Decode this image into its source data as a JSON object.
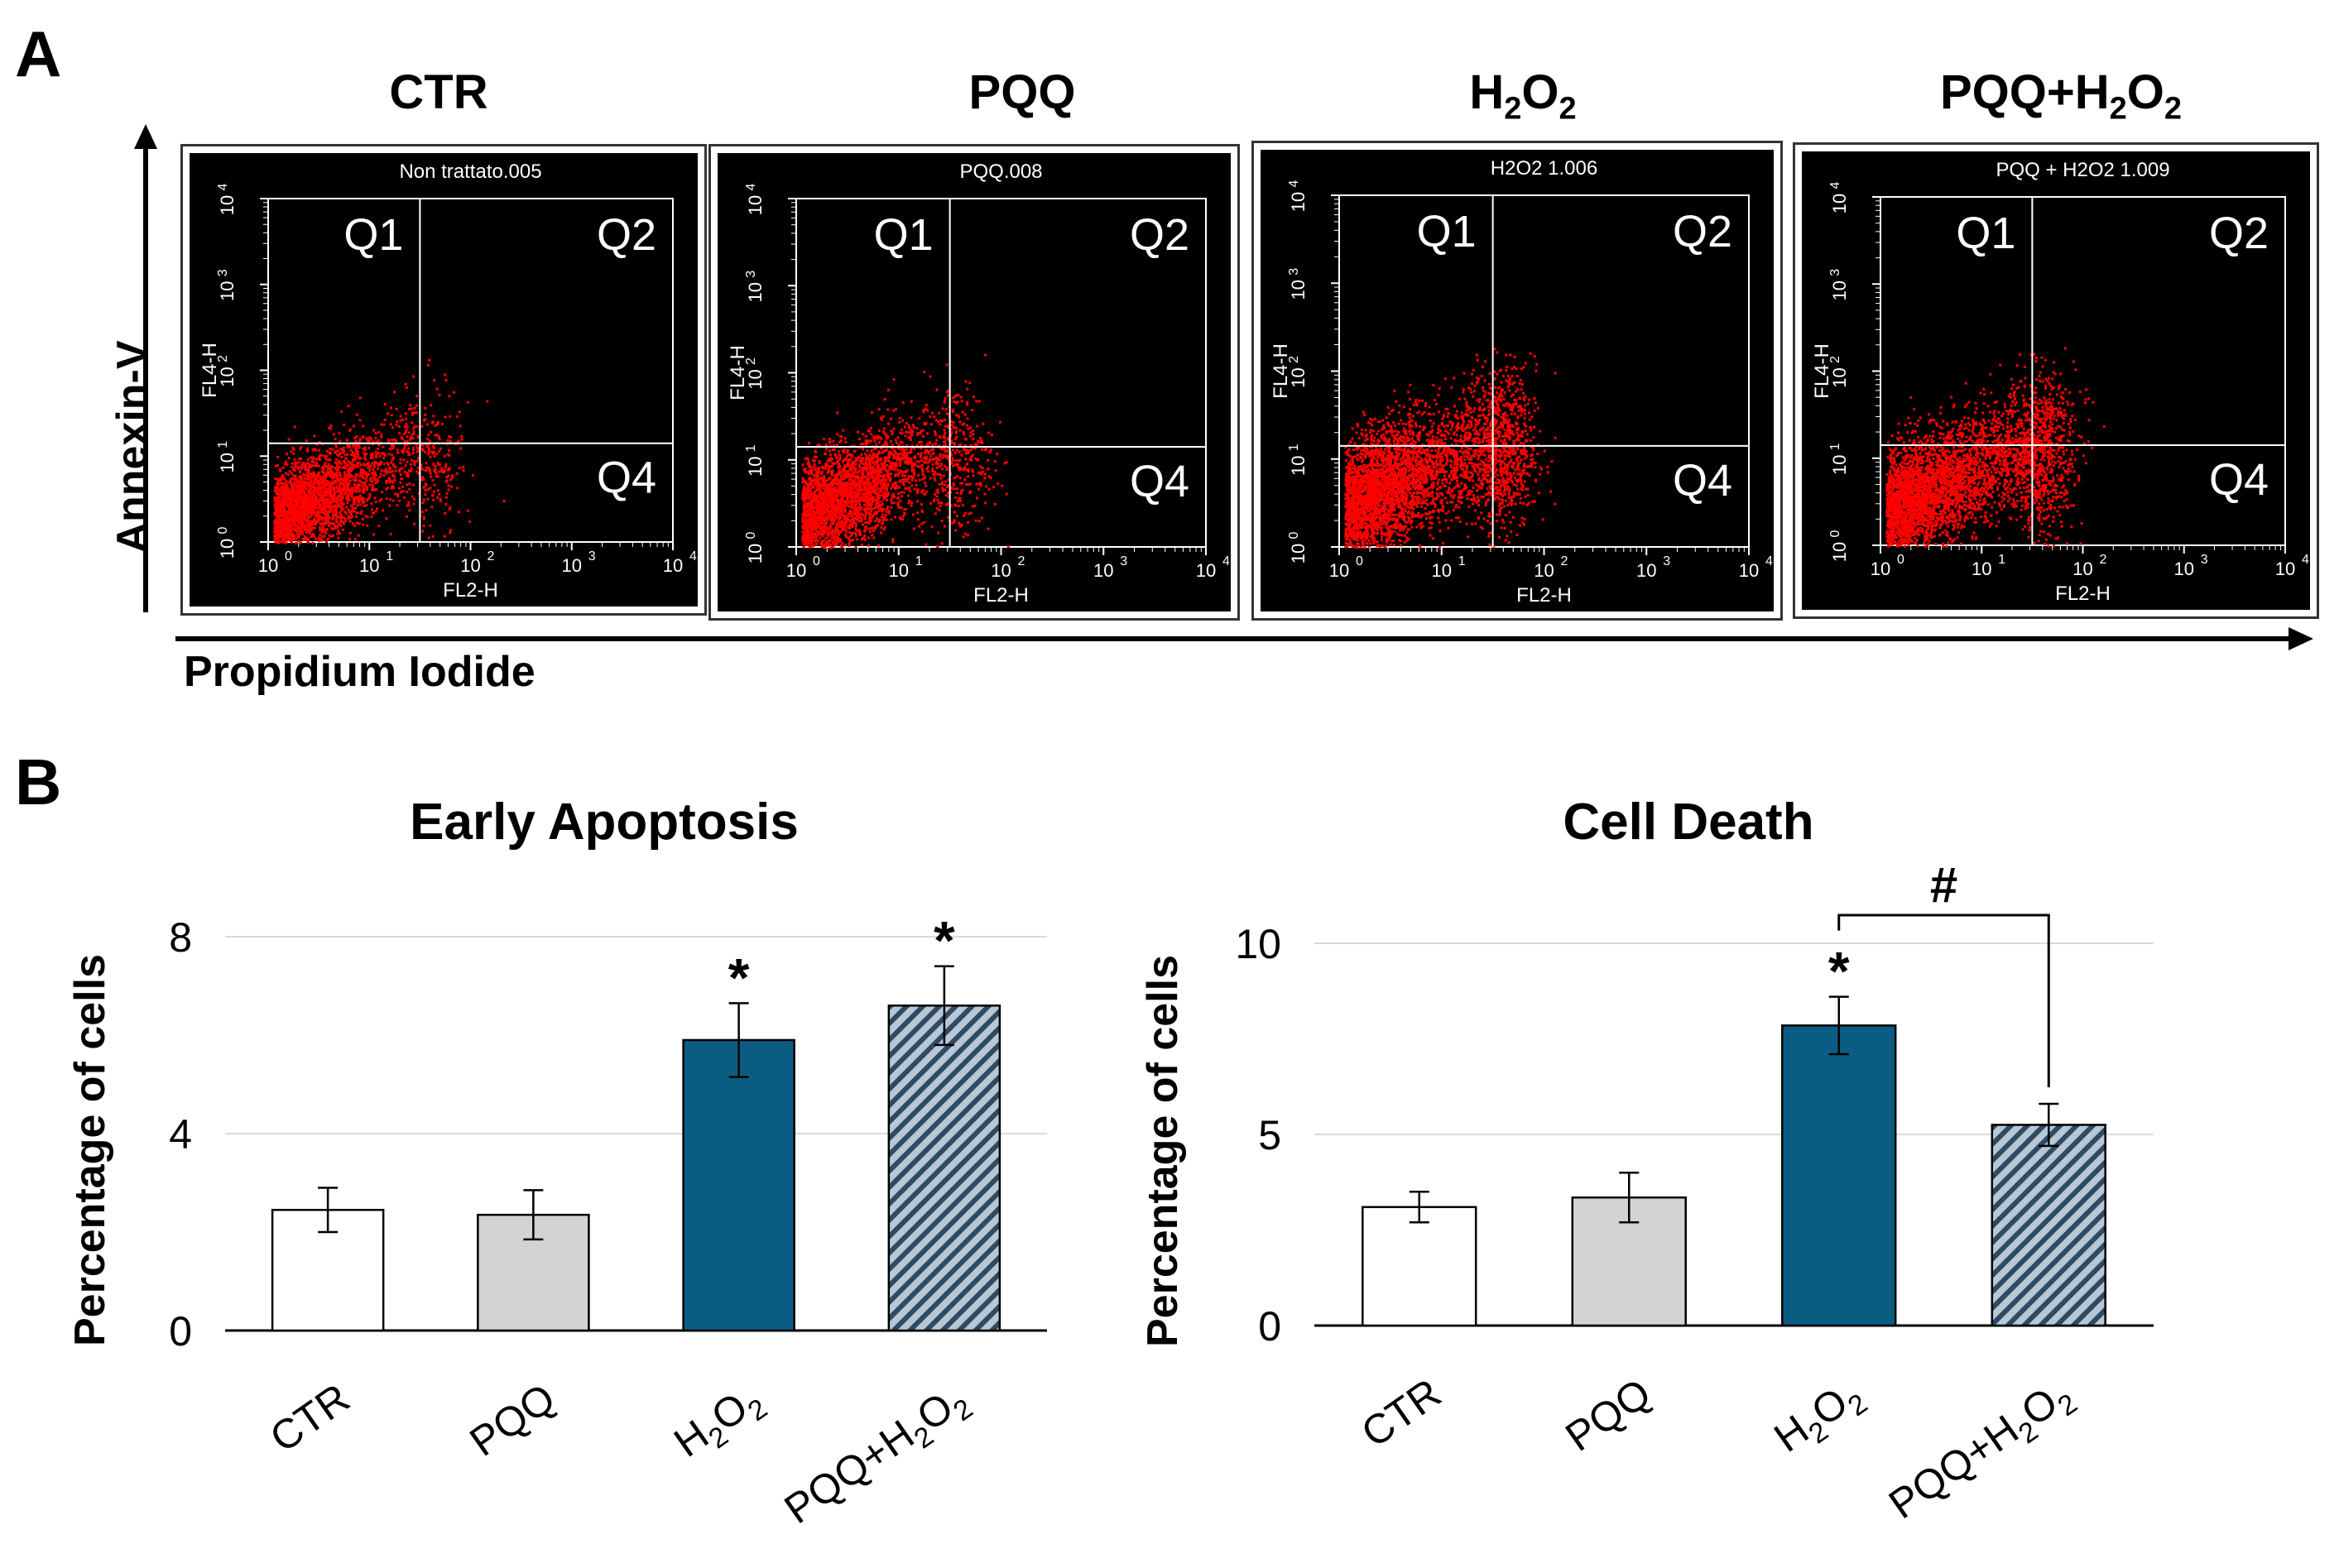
{
  "panels": {
    "a": "A",
    "b": "B"
  },
  "flow": {
    "y_axis_label": "Annexin-V",
    "x_axis_label": "Propidium Iodide",
    "x_channel": "FL2-H",
    "y_channel": "FL4-H",
    "quadrants": [
      "Q1",
      "Q2",
      "Q4"
    ],
    "decades": [
      "10",
      "10",
      "10",
      "10",
      "10"
    ],
    "exponents": [
      "0",
      "1",
      "2",
      "3",
      "4"
    ],
    "conditions": [
      {
        "title_main": "CTR",
        "title_sub": "",
        "title_end": "",
        "title_tail": "",
        "sample": "Non trattato.005"
      },
      {
        "title_main": "PQQ",
        "title_sub": "",
        "title_end": "",
        "title_tail": "",
        "sample": "PQQ.008"
      },
      {
        "title_main": "H",
        "title_sub": "2",
        "title_end": "O",
        "title_tail": "2",
        "sample": "H2O2 1.006"
      },
      {
        "title_main": "PQQ+H",
        "title_sub": "2",
        "title_end": "O",
        "title_tail": "2",
        "sample": "PQQ + H2O2 1.009"
      }
    ]
  },
  "colors": {
    "ctr": "#ffffff",
    "pqq": "#d3d3d3",
    "h2o2": "#0b5c82",
    "combo_base": "#b8c7d6",
    "combo_stripe": "#2f4a63",
    "dots": "#ff0000"
  },
  "chart_data": [
    {
      "type": "bar",
      "title": "Early Apoptosis",
      "ylabel": "Percentage of cells",
      "xlabel": "",
      "ylim": [
        0,
        8
      ],
      "yticks": [
        "0",
        "4",
        "8"
      ],
      "categories": [
        "CTR",
        "PQQ",
        "H2O2",
        "PQQ+H2O2"
      ],
      "values": [
        2.45,
        2.35,
        5.9,
        6.6
      ],
      "errors": [
        0.45,
        0.5,
        0.75,
        0.8
      ],
      "annotations": [
        "",
        "",
        "*",
        "*"
      ]
    },
    {
      "type": "bar",
      "title": "Cell Death",
      "ylabel": "Percentage of cells",
      "xlabel": "",
      "ylim": [
        0,
        10
      ],
      "yticks": [
        "0",
        "5",
        "10"
      ],
      "categories": [
        "CTR",
        "PQQ",
        "H2O2",
        "PQQ+H2O2"
      ],
      "values": [
        3.1,
        3.35,
        7.85,
        5.25
      ],
      "errors": [
        0.4,
        0.65,
        0.75,
        0.55
      ],
      "annotations": [
        "",
        "",
        "*",
        ""
      ],
      "bracket": {
        "from": 2,
        "to": 3,
        "label": "#"
      }
    }
  ]
}
